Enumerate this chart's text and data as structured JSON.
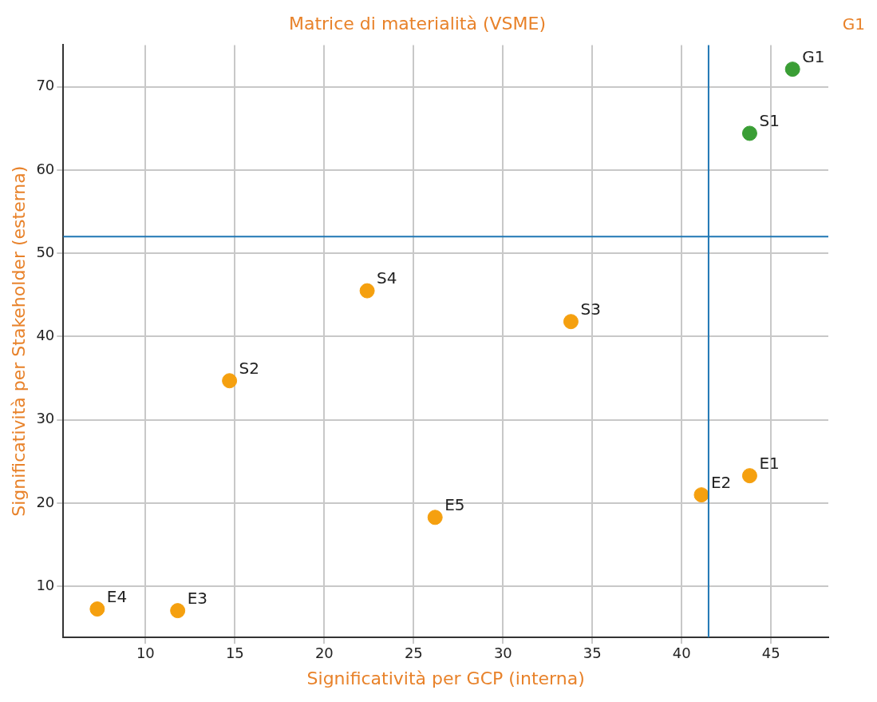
{
  "chart_data": {
    "type": "scatter",
    "title": "Matrice di materialità (VSME)",
    "xlabel": "Significatività per GCP (interna)",
    "ylabel": "Significatività per Stakeholder (esterna)",
    "x": [
      7.3,
      11.8,
      14.7,
      22.4,
      26.2,
      33.8,
      41.1,
      43.8,
      43.8,
      46.2
    ],
    "values": [
      7.3,
      7.1,
      34.7,
      45.5,
      18.3,
      41.8,
      21.0,
      23.3,
      64.4,
      72.1
    ],
    "colors": [
      "#f5a00f",
      "#f5a00f",
      "#f5a00f",
      "#f5a00f",
      "#f5a00f",
      "#f5a00f",
      "#f5a00f",
      "#f5a00f",
      "#3a9e35",
      "#3a9e35"
    ],
    "xlim": [
      5.4,
      48.2
    ],
    "xticks": [
      10,
      15,
      20,
      25,
      30,
      35,
      40,
      45
    ],
    "ylim": [
      3.9,
      75
    ],
    "yticks": [
      10,
      20,
      30,
      40,
      50,
      60,
      70
    ],
    "grid": true,
    "marker": "circle",
    "ref_lines": [
      {
        "axis": "x",
        "value": 41.5,
        "color": "#1f77b4"
      },
      {
        "axis": "y",
        "value": 52,
        "color": "#1f77b4"
      }
    ],
    "annotations": [
      {
        "text": "E4",
        "x": 7.3,
        "y": 7.3
      },
      {
        "text": "E3",
        "x": 11.8,
        "y": 7.1
      },
      {
        "text": "S2",
        "x": 14.7,
        "y": 34.7
      },
      {
        "text": "S4",
        "x": 22.4,
        "y": 45.5
      },
      {
        "text": "E5",
        "x": 26.2,
        "y": 18.3
      },
      {
        "text": "S3",
        "x": 33.8,
        "y": 41.8
      },
      {
        "text": "E2",
        "x": 41.1,
        "y": 21.0
      },
      {
        "text": "E1",
        "x": 43.8,
        "y": 23.3
      },
      {
        "text": "S1",
        "x": 43.8,
        "y": 64.4
      },
      {
        "text": "G1",
        "x": 46.2,
        "y": 72.1
      },
      "G1"
    ]
  }
}
